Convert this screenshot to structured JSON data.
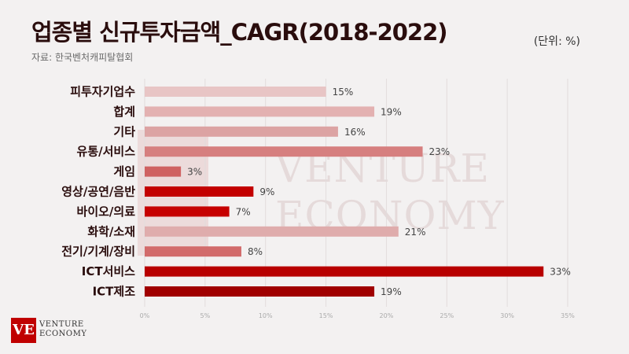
{
  "title": "업종별 신규투자금액_CAGR(2018-2022)",
  "unit": "(단위: %)",
  "source": "자료: 한국벤처캐피탈협회",
  "watermark": {
    "line1": "VENTURE",
    "line2": "ECONOMY"
  },
  "logo": {
    "mark": "VE",
    "line1": "VENTURE",
    "line2": "ECONOMY"
  },
  "chart_data": {
    "type": "bar",
    "orientation": "horizontal",
    "categories": [
      "피투자기업수",
      "합계",
      "기타",
      "유통/서비스",
      "게임",
      "영상/공연/음반",
      "바이오/의료",
      "화학/소재",
      "전기/기계/장비",
      "ICT서비스",
      "ICT제조"
    ],
    "values": [
      15,
      19,
      16,
      23,
      3,
      9,
      7,
      21,
      8,
      33,
      19
    ],
    "value_labels": [
      "15%",
      "19%",
      "16%",
      "23%",
      "3%",
      "9%",
      "7%",
      "21%",
      "8%",
      "33%",
      "19%"
    ],
    "bar_colors": [
      "#e8c5c5",
      "#e3b1b1",
      "#dca3a3",
      "#d67f7f",
      "#cf6161",
      "#c30000",
      "#c60000",
      "#dfacac",
      "#d26b6b",
      "#b80000",
      "#a00000"
    ],
    "xlim": [
      0,
      35
    ],
    "x_ticks": [
      0,
      5,
      10,
      15,
      20,
      25,
      30,
      35
    ],
    "x_tick_labels": [
      "0%",
      "5%",
      "10%",
      "15%",
      "20%",
      "25%",
      "30%",
      "35%"
    ],
    "grid": true
  }
}
